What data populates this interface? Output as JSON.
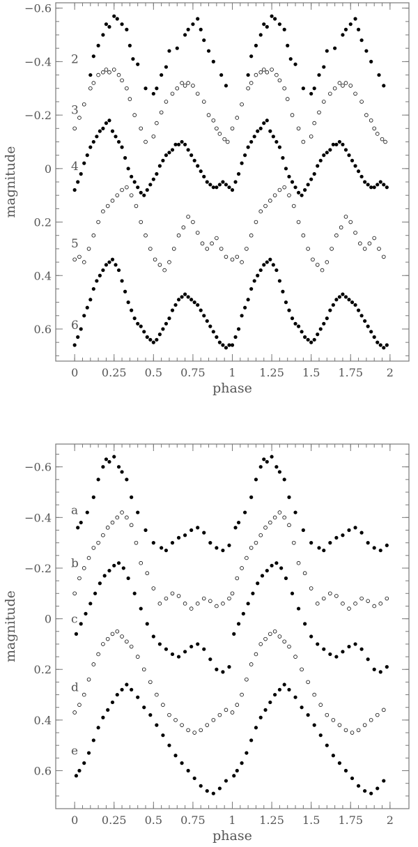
{
  "chart_data": [
    {
      "type": "scatter",
      "title": "",
      "xlabel": "phase",
      "ylabel": "magnitude",
      "xlim": [
        -0.12,
        2.12
      ],
      "ylim": [
        0.72,
        -0.62
      ],
      "y_inverted": true,
      "xticks": [
        0,
        0.25,
        0.5,
        0.75,
        1,
        1.25,
        1.5,
        1.75,
        2
      ],
      "xtick_labels": [
        "0",
        "0.25",
        "0.5",
        "0.75",
        "1",
        "1.25",
        "1.5",
        "1.75",
        "2"
      ],
      "yticks": [
        -0.6,
        -0.4,
        -0.2,
        0,
        0.2,
        0.4,
        0.6
      ],
      "ytick_labels": [
        "−0.6",
        "−0.4",
        "−0.2",
        "0",
        "0.2",
        "0.4",
        "0.6"
      ],
      "grid": false,
      "legend": "none",
      "series": [
        {
          "name": "2",
          "marker": "filled",
          "x": [
            0.1,
            0.12,
            0.15,
            0.18,
            0.2,
            0.22,
            0.25,
            0.27,
            0.3,
            0.33,
            0.35,
            0.37,
            0.4,
            0.45,
            0.5,
            0.52,
            0.55,
            0.58,
            0.6,
            0.65,
            0.7,
            0.72,
            0.75,
            0.78,
            0.8,
            0.82,
            0.85,
            0.88,
            0.93,
            0.96
          ],
          "y": [
            -0.35,
            -0.42,
            -0.46,
            -0.5,
            -0.54,
            -0.53,
            -0.57,
            -0.56,
            -0.54,
            -0.52,
            -0.46,
            -0.41,
            -0.39,
            -0.3,
            -0.28,
            -0.3,
            -0.35,
            -0.38,
            -0.44,
            -0.45,
            -0.5,
            -0.52,
            -0.54,
            -0.56,
            -0.52,
            -0.48,
            -0.44,
            -0.4,
            -0.35,
            -0.31
          ]
        },
        {
          "name": "3",
          "marker": "open",
          "x": [
            0.0,
            0.03,
            0.06,
            0.1,
            0.12,
            0.15,
            0.18,
            0.2,
            0.22,
            0.25,
            0.28,
            0.3,
            0.33,
            0.35,
            0.38,
            0.42,
            0.45,
            0.5,
            0.52,
            0.55,
            0.58,
            0.62,
            0.65,
            0.68,
            0.7,
            0.72,
            0.75,
            0.78,
            0.82,
            0.85,
            0.88,
            0.9,
            0.92,
            0.95,
            0.97
          ],
          "y": [
            -0.15,
            -0.19,
            -0.24,
            -0.3,
            -0.32,
            -0.35,
            -0.36,
            -0.37,
            -0.36,
            -0.37,
            -0.35,
            -0.33,
            -0.3,
            -0.26,
            -0.2,
            -0.15,
            -0.1,
            -0.12,
            -0.17,
            -0.21,
            -0.25,
            -0.28,
            -0.3,
            -0.32,
            -0.31,
            -0.32,
            -0.31,
            -0.28,
            -0.25,
            -0.2,
            -0.18,
            -0.15,
            -0.13,
            -0.11,
            -0.1
          ]
        },
        {
          "name": "4",
          "marker": "filled",
          "x": [
            0.0,
            0.02,
            0.04,
            0.06,
            0.08,
            0.1,
            0.12,
            0.14,
            0.16,
            0.18,
            0.2,
            0.22,
            0.24,
            0.26,
            0.28,
            0.3,
            0.32,
            0.34,
            0.36,
            0.38,
            0.4,
            0.42,
            0.44,
            0.46,
            0.48,
            0.5,
            0.52,
            0.54,
            0.56,
            0.58,
            0.6,
            0.62,
            0.64,
            0.66,
            0.68,
            0.7,
            0.72,
            0.74,
            0.76,
            0.78,
            0.8,
            0.82,
            0.84,
            0.86,
            0.88,
            0.9,
            0.92,
            0.94,
            0.96,
            0.98
          ],
          "y": [
            0.08,
            0.05,
            0.02,
            -0.02,
            -0.05,
            -0.08,
            -0.1,
            -0.12,
            -0.14,
            -0.15,
            -0.17,
            -0.18,
            -0.14,
            -0.12,
            -0.1,
            -0.08,
            -0.04,
            0.0,
            0.03,
            0.05,
            0.07,
            0.09,
            0.1,
            0.08,
            0.06,
            0.04,
            0.02,
            -0.01,
            -0.03,
            -0.05,
            -0.06,
            -0.07,
            -0.09,
            -0.09,
            -0.1,
            -0.09,
            -0.07,
            -0.05,
            -0.03,
            -0.01,
            0.01,
            0.03,
            0.05,
            0.06,
            0.07,
            0.07,
            0.06,
            0.05,
            0.06,
            0.07
          ]
        },
        {
          "name": "5",
          "marker": "open",
          "x": [
            0.0,
            0.03,
            0.06,
            0.09,
            0.12,
            0.15,
            0.18,
            0.21,
            0.24,
            0.27,
            0.3,
            0.33,
            0.36,
            0.39,
            0.42,
            0.45,
            0.48,
            0.51,
            0.54,
            0.57,
            0.6,
            0.63,
            0.66,
            0.69,
            0.72,
            0.75,
            0.78,
            0.81,
            0.84,
            0.87,
            0.9,
            0.93,
            0.96
          ],
          "y": [
            0.34,
            0.33,
            0.35,
            0.3,
            0.25,
            0.2,
            0.16,
            0.14,
            0.12,
            0.1,
            0.08,
            0.07,
            0.1,
            0.14,
            0.2,
            0.25,
            0.3,
            0.34,
            0.36,
            0.38,
            0.35,
            0.3,
            0.25,
            0.22,
            0.18,
            0.2,
            0.24,
            0.28,
            0.3,
            0.28,
            0.26,
            0.3,
            0.33
          ]
        },
        {
          "name": "6",
          "marker": "filled",
          "x": [
            0.0,
            0.02,
            0.04,
            0.06,
            0.08,
            0.1,
            0.12,
            0.14,
            0.16,
            0.18,
            0.2,
            0.22,
            0.24,
            0.26,
            0.28,
            0.3,
            0.32,
            0.34,
            0.36,
            0.38,
            0.4,
            0.42,
            0.44,
            0.46,
            0.48,
            0.5,
            0.52,
            0.54,
            0.56,
            0.58,
            0.6,
            0.62,
            0.64,
            0.66,
            0.68,
            0.7,
            0.72,
            0.74,
            0.76,
            0.78,
            0.8,
            0.82,
            0.84,
            0.86,
            0.88,
            0.9,
            0.92,
            0.94,
            0.96,
            0.98
          ],
          "y": [
            0.66,
            0.63,
            0.6,
            0.55,
            0.52,
            0.49,
            0.45,
            0.42,
            0.4,
            0.38,
            0.36,
            0.35,
            0.34,
            0.36,
            0.38,
            0.42,
            0.46,
            0.5,
            0.53,
            0.56,
            0.58,
            0.59,
            0.61,
            0.63,
            0.64,
            0.65,
            0.64,
            0.62,
            0.6,
            0.58,
            0.56,
            0.53,
            0.51,
            0.49,
            0.48,
            0.47,
            0.48,
            0.49,
            0.5,
            0.51,
            0.53,
            0.55,
            0.57,
            0.59,
            0.61,
            0.63,
            0.65,
            0.66,
            0.67,
            0.66
          ]
        }
      ],
      "curve_labels": [
        {
          "text": "2",
          "y": -0.41
        },
        {
          "text": "3",
          "y": -0.22
        },
        {
          "text": "4",
          "y": -0.01
        },
        {
          "text": "5",
          "y": 0.28
        },
        {
          "text": "6",
          "y": 0.585
        }
      ]
    },
    {
      "type": "scatter",
      "title": "",
      "xlabel": "phase",
      "ylabel": "magnitude",
      "xlim": [
        -0.12,
        2.12
      ],
      "ylim": [
        0.75,
        -0.69
      ],
      "y_inverted": true,
      "xticks": [
        0,
        0.25,
        0.5,
        0.75,
        1,
        1.25,
        1.5,
        1.75,
        2
      ],
      "xtick_labels": [
        "0",
        "0.25",
        "0.5",
        "0.75",
        "1",
        "1.25",
        "1.5",
        "1.75",
        "2"
      ],
      "yticks": [
        -0.6,
        -0.4,
        -0.2,
        0,
        0.2,
        0.4,
        0.6
      ],
      "ytick_labels": [
        "−0.6",
        "−0.4",
        "−0.2",
        "0",
        "0.2",
        "0.4",
        "0.6"
      ],
      "grid": false,
      "legend": "none",
      "series": [
        {
          "name": "a",
          "marker": "filled",
          "x": [
            0.02,
            0.04,
            0.08,
            0.12,
            0.15,
            0.18,
            0.2,
            0.22,
            0.25,
            0.28,
            0.3,
            0.33,
            0.36,
            0.4,
            0.45,
            0.5,
            0.55,
            0.58,
            0.62,
            0.66,
            0.7,
            0.74,
            0.78,
            0.82,
            0.86,
            0.9,
            0.94,
            0.98
          ],
          "y": [
            -0.36,
            -0.38,
            -0.42,
            -0.48,
            -0.55,
            -0.6,
            -0.63,
            -0.62,
            -0.64,
            -0.6,
            -0.58,
            -0.55,
            -0.48,
            -0.42,
            -0.35,
            -0.3,
            -0.28,
            -0.27,
            -0.3,
            -0.32,
            -0.33,
            -0.35,
            -0.36,
            -0.34,
            -0.3,
            -0.28,
            -0.27,
            -0.29
          ]
        },
        {
          "name": "b",
          "marker": "open",
          "x": [
            0.0,
            0.03,
            0.06,
            0.09,
            0.12,
            0.15,
            0.18,
            0.21,
            0.24,
            0.27,
            0.3,
            0.33,
            0.36,
            0.39,
            0.42,
            0.46,
            0.5,
            0.54,
            0.58,
            0.62,
            0.66,
            0.7,
            0.74,
            0.78,
            0.82,
            0.86,
            0.9,
            0.94,
            0.98
          ],
          "y": [
            -0.1,
            -0.16,
            -0.2,
            -0.24,
            -0.28,
            -0.3,
            -0.33,
            -0.36,
            -0.38,
            -0.4,
            -0.42,
            -0.4,
            -0.37,
            -0.3,
            -0.22,
            -0.18,
            -0.12,
            -0.06,
            -0.08,
            -0.1,
            -0.09,
            -0.06,
            -0.04,
            -0.06,
            -0.08,
            -0.07,
            -0.05,
            -0.06,
            -0.08
          ]
        },
        {
          "name": "c",
          "marker": "filled",
          "x": [
            0.01,
            0.04,
            0.07,
            0.1,
            0.13,
            0.16,
            0.19,
            0.22,
            0.25,
            0.28,
            0.31,
            0.34,
            0.38,
            0.42,
            0.46,
            0.5,
            0.54,
            0.58,
            0.62,
            0.66,
            0.7,
            0.74,
            0.78,
            0.82,
            0.86,
            0.9,
            0.94,
            0.98
          ],
          "y": [
            0.06,
            0.02,
            -0.02,
            -0.06,
            -0.1,
            -0.14,
            -0.17,
            -0.19,
            -0.21,
            -0.22,
            -0.2,
            -0.16,
            -0.1,
            -0.04,
            0.02,
            0.07,
            0.1,
            0.12,
            0.14,
            0.15,
            0.13,
            0.11,
            0.1,
            0.12,
            0.16,
            0.2,
            0.21,
            0.19
          ]
        },
        {
          "name": "d",
          "marker": "open",
          "x": [
            0.0,
            0.03,
            0.06,
            0.09,
            0.12,
            0.15,
            0.18,
            0.21,
            0.24,
            0.27,
            0.3,
            0.33,
            0.36,
            0.4,
            0.44,
            0.48,
            0.52,
            0.56,
            0.6,
            0.64,
            0.68,
            0.72,
            0.76,
            0.8,
            0.84,
            0.88,
            0.92,
            0.96
          ],
          "y": [
            0.37,
            0.34,
            0.3,
            0.24,
            0.18,
            0.14,
            0.1,
            0.08,
            0.06,
            0.05,
            0.07,
            0.09,
            0.11,
            0.15,
            0.2,
            0.25,
            0.3,
            0.34,
            0.38,
            0.4,
            0.42,
            0.44,
            0.45,
            0.44,
            0.42,
            0.4,
            0.38,
            0.36
          ]
        },
        {
          "name": "e",
          "marker": "filled",
          "x": [
            0.01,
            0.03,
            0.06,
            0.09,
            0.12,
            0.15,
            0.18,
            0.21,
            0.24,
            0.27,
            0.3,
            0.33,
            0.36,
            0.4,
            0.44,
            0.48,
            0.52,
            0.56,
            0.6,
            0.64,
            0.68,
            0.72,
            0.76,
            0.8,
            0.84,
            0.88,
            0.92,
            0.96
          ],
          "y": [
            0.62,
            0.6,
            0.57,
            0.53,
            0.48,
            0.43,
            0.39,
            0.36,
            0.33,
            0.3,
            0.28,
            0.26,
            0.28,
            0.31,
            0.35,
            0.38,
            0.42,
            0.46,
            0.5,
            0.54,
            0.57,
            0.6,
            0.63,
            0.66,
            0.68,
            0.69,
            0.67,
            0.64
          ]
        }
      ],
      "curve_labels": [
        {
          "text": "a",
          "y": -0.43
        },
        {
          "text": "b",
          "y": -0.22
        },
        {
          "text": "c",
          "y": 0.0
        },
        {
          "text": "d",
          "y": 0.27
        },
        {
          "text": "e",
          "y": 0.52
        }
      ]
    }
  ]
}
